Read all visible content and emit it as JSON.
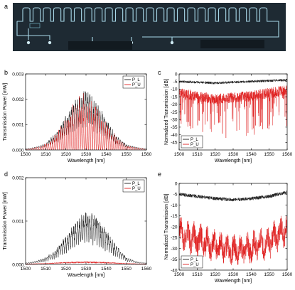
{
  "figure": {
    "panel_letters": [
      "a",
      "b",
      "c",
      "d",
      "e"
    ],
    "photo_label": "",
    "colors": {
      "P_L": "#1a1a1a",
      "P_U": "#e02020",
      "photo_bg": "#1e2a33",
      "waveguide": "#a8d8e8"
    }
  },
  "chart_data": [
    {
      "panel": "b",
      "type": "line",
      "xlabel": "Wavelength [nm]",
      "ylabel": "Transmission Power [mW]",
      "xlim": [
        1500,
        1560
      ],
      "ylim": [
        0,
        0.003
      ],
      "xticks": [
        "1500",
        "1510",
        "1520",
        "1530",
        "1540",
        "1550",
        "1560"
      ],
      "yticks": [
        "0.000",
        "0.001",
        "0.002",
        "0.003"
      ],
      "legend": "top-right",
      "series": [
        {
          "name": "P_L",
          "x": [
            1500,
            1505,
            1510,
            1515,
            1520,
            1525,
            1530,
            1535,
            1540,
            1545,
            1550,
            1555,
            1560
          ],
          "y": [
            5e-05,
            0.0001,
            0.00025,
            0.0006,
            0.0012,
            0.0018,
            0.0021,
            0.0017,
            0.0011,
            0.0005,
            0.0002,
            0.0001,
            5e-05
          ]
        },
        {
          "name": "P_U",
          "x": [
            1500,
            1505,
            1510,
            1515,
            1520,
            1525,
            1530,
            1535,
            1540,
            1545,
            1550,
            1555,
            1560
          ],
          "y": [
            3e-05,
            8e-05,
            0.0002,
            0.0005,
            0.0011,
            0.0016,
            0.0018,
            0.0015,
            0.0009,
            0.0004,
            0.00015,
            8e-05,
            3e-05
          ]
        }
      ]
    },
    {
      "panel": "c",
      "type": "line",
      "xlabel": "Wavelength [nm]",
      "ylabel": "Normalized Transmission [dB]",
      "xlim": [
        1500,
        1560
      ],
      "ylim": [
        -50,
        0
      ],
      "xticks": [
        "1500",
        "1510",
        "1520",
        "1530",
        "1540",
        "1550",
        "1560"
      ],
      "yticks": [
        "0",
        "-5",
        "-10",
        "-15",
        "-20",
        "-25",
        "-30",
        "-35",
        "-40",
        "-45"
      ],
      "legend": "bottom-left",
      "series": [
        {
          "name": "P_L",
          "x": [
            1500,
            1510,
            1520,
            1530,
            1540,
            1550,
            1560
          ],
          "y": [
            -5,
            -5.5,
            -6,
            -5.5,
            -5,
            -4.5,
            -4
          ]
        },
        {
          "name": "P_U",
          "x": [
            1500,
            1510,
            1520,
            1530,
            1540,
            1550,
            1560
          ],
          "y": [
            -12,
            -14,
            -16,
            -15,
            -14,
            -12,
            -10
          ]
        }
      ]
    },
    {
      "panel": "d",
      "type": "line",
      "xlabel": "Wavelength [nm]",
      "ylabel": "Transmission Power [mW]",
      "xlim": [
        1500,
        1560
      ],
      "ylim": [
        0,
        0.002
      ],
      "xticks": [
        "1500",
        "1510",
        "1520",
        "1530",
        "1540",
        "1550",
        "1560"
      ],
      "yticks": [
        "0.000",
        "0.001",
        "0.002"
      ],
      "legend": "top-right",
      "series": [
        {
          "name": "P_L",
          "x": [
            1500,
            1505,
            1510,
            1515,
            1520,
            1525,
            1530,
            1535,
            1540,
            1545,
            1550,
            1555,
            1560
          ],
          "y": [
            3e-05,
            7e-05,
            0.00015,
            0.0003,
            0.0006,
            0.0009,
            0.0011,
            0.001,
            0.0007,
            0.0004,
            0.00015,
            6e-05,
            3e-05
          ]
        },
        {
          "name": "P_U",
          "x": [
            1500,
            1510,
            1520,
            1530,
            1540,
            1550,
            1560
          ],
          "y": [
            1e-05,
            2e-05,
            4e-05,
            5e-05,
            4e-05,
            2e-05,
            1e-05
          ]
        }
      ]
    },
    {
      "panel": "e",
      "type": "line",
      "xlabel": "Wavelength [nm]",
      "ylabel": "Normalized Transmission [dB]",
      "xlim": [
        1500,
        1560
      ],
      "ylim": [
        -40,
        0
      ],
      "xticks": [
        "1500",
        "1510",
        "1520",
        "1530",
        "1540",
        "1550",
        "1560"
      ],
      "yticks": [
        "0",
        "-5",
        "-10",
        "-15",
        "-20",
        "-25",
        "-30",
        "-35",
        "-40"
      ],
      "legend": "bottom-left",
      "series": [
        {
          "name": "P_L",
          "x": [
            1500,
            1510,
            1520,
            1530,
            1540,
            1550,
            1560
          ],
          "y": [
            -5,
            -6,
            -7,
            -7.5,
            -7,
            -6,
            -4
          ]
        },
        {
          "name": "P_U",
          "x": [
            1500,
            1510,
            1520,
            1530,
            1540,
            1550,
            1560
          ],
          "y": [
            -22,
            -25,
            -28,
            -30,
            -29,
            -26,
            -20
          ]
        }
      ]
    }
  ]
}
